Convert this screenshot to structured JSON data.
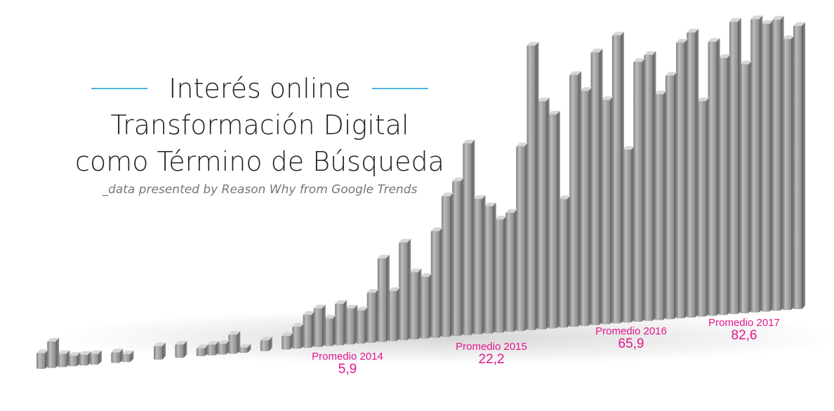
{
  "title": {
    "line1": "Interés online",
    "line2": "Transformación Digital",
    "line3": "como Término de Búsqueda",
    "subtitle": "_data presented by Reason Why from Google Trends"
  },
  "colors": {
    "bar": "#9a9a9a",
    "accent_rule": "#4fb3e0",
    "annotation": "#e4158d"
  },
  "annotations": [
    {
      "label": "Promedio 2014",
      "value": "5,9"
    },
    {
      "label": "Promedio 2015",
      "value": "22,2"
    },
    {
      "label": "Promedio 2016",
      "value": "65,9"
    },
    {
      "label": "Promedio 2017",
      "value": "82,6"
    }
  ],
  "chart_data": {
    "type": "bar",
    "title": "Interés online Transformación Digital como Término de Búsqueda",
    "subtitle": "_data presented by Reason Why from Google Trends",
    "xlabel": "",
    "ylabel": "",
    "ylim": [
      0,
      100
    ],
    "grid": false,
    "years": [
      "2014",
      "2015",
      "2016",
      "2017"
    ],
    "averages": [
      5.9,
      22.2,
      65.9,
      82.6
    ],
    "values": [
      6,
      10,
      5,
      4,
      4,
      4,
      0,
      4,
      3,
      0,
      0,
      5,
      0,
      5,
      0,
      3,
      4,
      4,
      7,
      2,
      0,
      4,
      0,
      5,
      8,
      12,
      14,
      10,
      15,
      13,
      12,
      18,
      30,
      18,
      35,
      24,
      22,
      38,
      50,
      55,
      68,
      48,
      45,
      40,
      42,
      65,
      100,
      80,
      75,
      45,
      88,
      82,
      95,
      78,
      100,
      60,
      90,
      92,
      78,
      84,
      95,
      98,
      74,
      94,
      88,
      100,
      85,
      100,
      98,
      99,
      92,
      96
    ]
  }
}
